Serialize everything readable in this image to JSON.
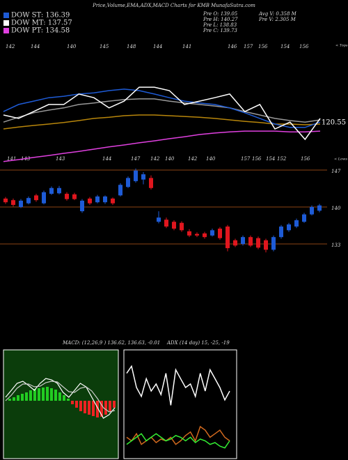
{
  "header": {
    "title": "Price,Volume,EMA,ADX,MACD Charts for KMB MunafaSutra.com",
    "legend": [
      {
        "label": "DOW ST: 136.39",
        "color": "#1e5bd6"
      },
      {
        "label": "DOW MT: 137.57",
        "color": "#ffffff"
      },
      {
        "label": "DOW PT: 134.58",
        "color": "#e040e0"
      }
    ],
    "info": [
      "Pre  O: 139.05",
      "Pre  H: 140.27",
      "Pre  L: 138.83",
      "Pre  C: 139.73",
      "Avg V: 0.358  M",
      "Pre  V: 2.305 M"
    ],
    "tops_label": "< Tops",
    "lows_label": "< Lows",
    "top_labels": [
      142,
      144,
      140,
      145,
      148,
      144,
      141,
      146,
      157,
      156,
      154,
      156
    ],
    "bottom_labels": [
      141,
      143,
      143,
      144,
      147,
      142,
      140,
      142,
      140,
      157,
      156,
      154,
      152,
      156
    ],
    "last_value": 120.55,
    "macd_label": "MACD: (12,26,9 ) 136.62, 136.63, -0.01",
    "adx_label": "ADX    (14 day) 15, -25, -19"
  },
  "chart_data": [
    {
      "type": "line",
      "ylim": [
        107,
        157
      ],
      "series": [
        {
          "color": "#b8860b",
          "values": [
            121.3,
            122.1,
            122.7,
            123.3,
            123.9,
            124.7,
            125.6,
            126.1,
            126.7,
            127,
            127,
            126.7,
            126.4,
            126.1,
            125.6,
            125,
            124.4,
            123.9,
            123.3,
            123.3,
            123,
            123.3
          ]
        },
        {
          "color": "#999999",
          "values": [
            124.1,
            126.1,
            127.9,
            129,
            129.9,
            131.3,
            131.9,
            132.7,
            133.3,
            133.6,
            133.6,
            132.7,
            131.9,
            131.3,
            130.7,
            129.9,
            128.4,
            127,
            125.6,
            124.7,
            124.1,
            125
          ]
        },
        {
          "color": "#e040e0",
          "values": [
            107.9,
            108.7,
            109.6,
            110.4,
            111.3,
            112.1,
            113,
            113.9,
            114.7,
            115.6,
            116.4,
            117.3,
            118.1,
            119,
            119.6,
            120.1,
            120.4,
            120.4,
            120.4,
            120.1,
            120.1,
            120.4
          ]
        },
        {
          "color": "#1e5bd6",
          "values": [
            128.4,
            131.3,
            132.7,
            134.1,
            134.7,
            135.6,
            136.1,
            137,
            137.6,
            137,
            135.6,
            134.1,
            132.7,
            131.9,
            131.3,
            129.9,
            127.9,
            125.6,
            123.3,
            121.9,
            121.9,
            124.1
          ]
        },
        {
          "color": "#ffffff",
          "values": [
            127,
            125.6,
            128.4,
            131.3,
            131.3,
            135.6,
            134.1,
            129.9,
            132.7,
            138.4,
            138.4,
            137,
            131.3,
            132.7,
            134.1,
            135.6,
            128.4,
            131.3,
            121.3,
            124.1,
            117,
            125.6
          ]
        }
      ]
    },
    {
      "type": "candlestick",
      "ylim": [
        129.7,
        148.85
      ],
      "yticks": [
        147,
        140,
        133
      ],
      "up_color": "#1e5bd6",
      "down_color": "#e0161e",
      "grid_color": "#8b4513",
      "open": [
        141.6,
        141.3,
        140.0,
        140.7,
        142.2,
        140.7,
        142.5,
        142.6,
        142.5,
        142.4,
        139.2,
        141.6,
        140.9,
        140.9,
        141.6,
        142.2,
        143.8,
        144.9,
        145.2,
        145.5,
        137.2,
        137.6,
        137.2,
        137.0,
        135.4,
        134.9,
        135.0,
        134.6,
        135.9,
        136.3,
        133.7,
        133.0,
        134.3,
        134.1,
        133.7,
        131.9,
        134.3,
        135.6,
        136.3,
        137.2,
        138.6,
        139.3
      ],
      "high": [
        141.9,
        141.6,
        141.5,
        142.0,
        142.5,
        143.1,
        143.9,
        144.0,
        142.8,
        142.7,
        141.5,
        141.9,
        142.3,
        142.2,
        141.8,
        144.5,
        145.8,
        147.3,
        146.6,
        146.0,
        139.2,
        138.0,
        137.5,
        137.3,
        135.8,
        135.2,
        135.3,
        135.9,
        136.2,
        136.6,
        134.0,
        134.6,
        134.6,
        134.4,
        134.0,
        134.6,
        136.6,
        137.0,
        137.8,
        138.9,
        140.3,
        140.6
      ],
      "low": [
        140.6,
        140.1,
        139.8,
        140.5,
        141.0,
        140.5,
        142.3,
        142.4,
        141.2,
        141.3,
        138.9,
        140.4,
        140.7,
        140.6,
        140.4,
        142.0,
        143.6,
        144.6,
        144.3,
        143.3,
        136.9,
        136.0,
        135.6,
        135.3,
        134.3,
        134.3,
        134.0,
        134.4,
        133.8,
        131.6,
        132.4,
        132.7,
        132.4,
        132.0,
        131.4,
        131.6,
        134.0,
        135.3,
        136.0,
        137.0,
        138.4,
        139.0
      ],
      "close": [
        140.9,
        140.4,
        141.2,
        141.7,
        141.3,
        142.8,
        143.6,
        143.6,
        141.5,
        141.5,
        141.2,
        140.7,
        142.0,
        142.0,
        140.7,
        144.2,
        145.5,
        146.9,
        146.2,
        143.6,
        138.0,
        136.3,
        135.9,
        135.6,
        134.6,
        134.6,
        134.3,
        135.6,
        134.1,
        132.2,
        132.7,
        134.3,
        132.7,
        132.3,
        131.9,
        134.3,
        136.3,
        136.7,
        137.5,
        138.6,
        140.0,
        140.3
      ]
    },
    {
      "type": "macd",
      "ylim": [
        -8.5,
        7
      ],
      "background": "#0b3d0b",
      "up_color": "#22cc22",
      "down_color": "#ee2222",
      "histogram": [
        0.3,
        0.5,
        0.8,
        1,
        1.2,
        1.5,
        1.7,
        1.8,
        1.9,
        2,
        1.8,
        1.6,
        1.2,
        0.8,
        0.3,
        -0.5,
        -1,
        -1.5,
        -1.8,
        -2,
        -2.2,
        -2.4,
        -2.3,
        -2,
        -1.5,
        -1
      ],
      "series": [
        {
          "color": "#ffffff",
          "values": [
            0.5,
            1.5,
            2.5,
            2.8,
            2.2,
            1.5,
            2.5,
            3.2,
            3,
            2.5,
            1.2,
            0.5,
            1.5,
            2.5,
            2,
            0.5,
            -1,
            -2.5,
            -2,
            -1
          ]
        },
        {
          "color": "#cccccc",
          "values": [
            0,
            0.8,
            1.8,
            2.4,
            2.4,
            2,
            2.1,
            2.6,
            2.8,
            2.7,
            2,
            1.3,
            1.2,
            1.8,
            2,
            1.4,
            0.3,
            -1,
            -1.6,
            -1.4
          ]
        }
      ]
    },
    {
      "type": "adx",
      "ylim": [
        0,
        60
      ],
      "background": "#000000",
      "series": [
        {
          "color": "#ffffff",
          "values": [
            48,
            52,
            40,
            35,
            45,
            38,
            42,
            36,
            48,
            30,
            50,
            45,
            40,
            42,
            35,
            48,
            38,
            50,
            45,
            40,
            33,
            38
          ]
        },
        {
          "color": "#d2691e",
          "values": [
            12,
            10,
            14,
            8,
            10,
            12,
            9,
            11,
            10,
            12,
            8,
            10,
            13,
            15,
            10,
            18,
            16,
            12,
            14,
            16,
            12,
            10
          ]
        },
        {
          "color": "#33ee33",
          "values": [
            8,
            10,
            12,
            14,
            10,
            12,
            14,
            12,
            10,
            11,
            13,
            12,
            10,
            12,
            9,
            11,
            10,
            8,
            9,
            7,
            6,
            10
          ]
        }
      ]
    }
  ]
}
